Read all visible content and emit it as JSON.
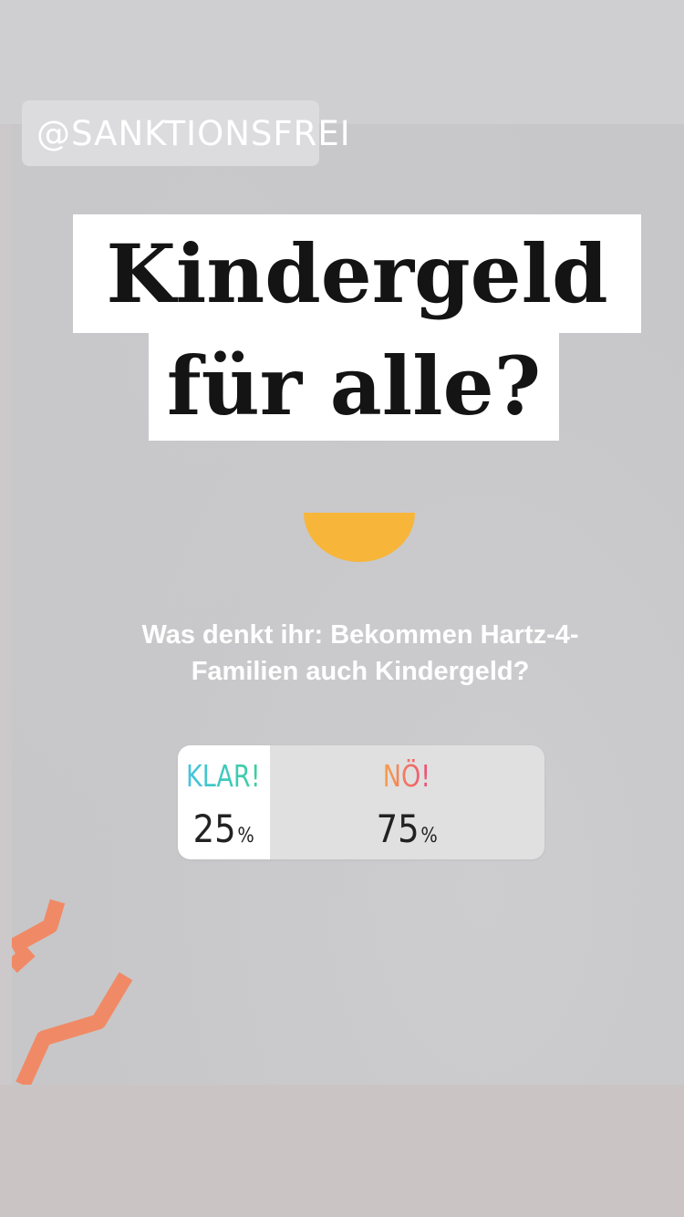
{
  "story": {
    "handle": "@SANKTIONSFREI",
    "headline_line1": "Kindergeld",
    "headline_line2": "für alle?",
    "question": "Was denkt ihr: Bekommen Hartz-4-Familien auch Kindergeld?"
  },
  "poll": {
    "options": [
      {
        "label": "KLAR!",
        "percent": "25",
        "percent_sign": "%"
      },
      {
        "label": "NÖ!",
        "percent": "75",
        "percent_sign": "%"
      }
    ],
    "leading_share": 0.25
  },
  "icons": {
    "bowl": "half-circle-bowl-icon",
    "squiggle": "zigzag-decoration-icon"
  },
  "colors": {
    "background": "#c7c7c9",
    "bowl": "#f7b53a",
    "squiggle": "#f08a66",
    "option_a_gradient": [
      "#45c3e0",
      "#3ccf9b"
    ],
    "option_b_gradient": [
      "#f7a14a",
      "#ec4b7a"
    ]
  }
}
